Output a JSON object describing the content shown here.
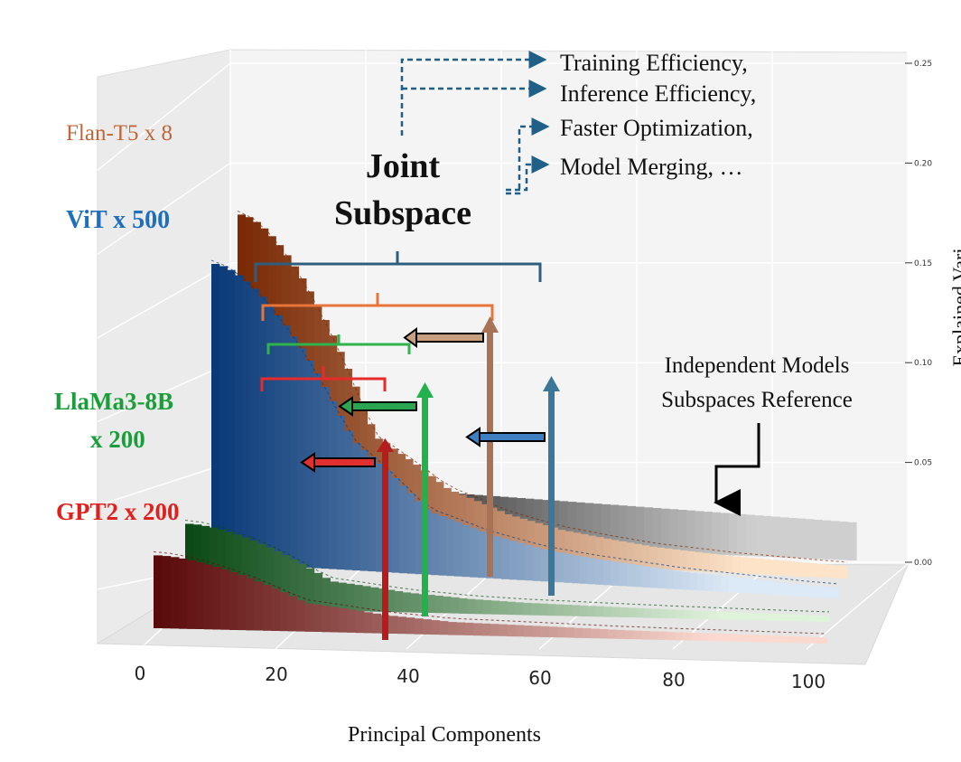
{
  "chart_data": {
    "type": "bar",
    "subtype": "3d-bar-explained-variance",
    "xlabel": "Principal Components",
    "zlabel": "Explained Variance",
    "xticks": [
      0,
      20,
      40,
      60,
      80,
      100
    ],
    "xlim": [
      0,
      100
    ],
    "zticks": [
      "0.00",
      "0.05",
      "0.10",
      "0.15",
      "0.20",
      "0.25"
    ],
    "zlim": [
      0,
      0.25
    ],
    "grid": true,
    "series": [
      {
        "name": "GPT2 x 200",
        "color": "#e0201d",
        "values": [
          0.028,
          0.011,
          0.007,
          0.005,
          0.0045,
          0.004,
          0.0035,
          0.0032,
          0.003,
          0.0028,
          0.0026,
          0.0024
        ]
      },
      {
        "name": "LlaMa3-8B x 200",
        "color": "#1a9e3a",
        "values": [
          0.034,
          0.012,
          0.008,
          0.006,
          0.005,
          0.0045,
          0.004,
          0.0036,
          0.0033,
          0.003,
          0.0028,
          0.0026
        ]
      },
      {
        "name": "ViT x 500",
        "color": "#1f6fbf",
        "values": [
          0.15,
          0.065,
          0.032,
          0.022,
          0.016,
          0.013,
          0.011,
          0.009,
          0.008,
          0.007,
          0.006,
          0.0055
        ]
      },
      {
        "name": "Flan-T5 x 8",
        "color": "#e8641a",
        "values": [
          0.24,
          0.085,
          0.05,
          0.034,
          0.025,
          0.02,
          0.016,
          0.014,
          0.012,
          0.011,
          0.01,
          0.009
        ]
      },
      {
        "name": "Independent Models Subspaces Reference",
        "color": "#000000",
        "values": [
          0.035,
          0.034,
          0.033,
          0.032,
          0.031,
          0.03,
          0.029,
          0.028,
          0.027,
          0.026,
          0.025,
          0.024
        ]
      }
    ]
  },
  "labels": {
    "flan": "Flan-T5 x 8",
    "vit": "ViT x 500",
    "llama_line1": "LlaMa3-8B",
    "llama_line2": "x 200",
    "gpt2": "GPT2 x 200",
    "joint_line1": "Joint",
    "joint_line2": "Subspace",
    "benefit1": "Training Efficiency,",
    "benefit2": "Inference Efficiency,",
    "benefit3": "Faster Optimization,",
    "benefit4": "Model Merging, …",
    "independent_line1": "Independent Models",
    "independent_line2": "Subspaces Reference",
    "zlabel_visible": "Explained Vari"
  },
  "colors": {
    "gpt2": "#e0201d",
    "llama": "#1a9e3a",
    "vit": "#1f6fbf",
    "flan": "#c0673a",
    "joint_bracket": "#2e5e7e",
    "flan_bracket": "#e8743a",
    "llama_bracket": "#2fb34a",
    "gpt2_bracket": "#e82a2a",
    "arrow_dashed": "#1f5f88"
  }
}
